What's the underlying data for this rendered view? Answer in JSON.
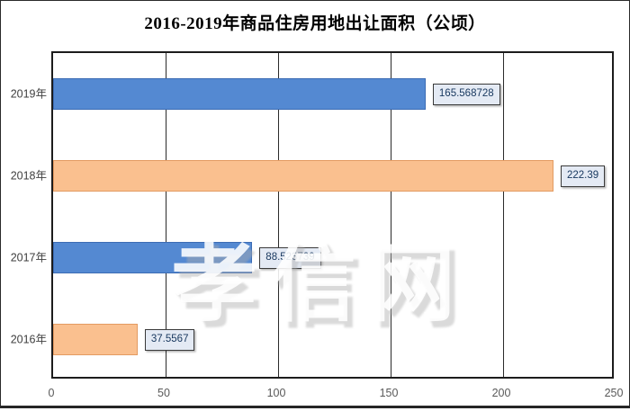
{
  "frame": {
    "background": "#ffffff",
    "border_color": "#2a2a2a",
    "bottom_rule_color": "#262626"
  },
  "chart_data": {
    "type": "bar",
    "orientation": "horizontal",
    "title": "2016-2019年商品住房用地出让面积（公顷）",
    "categories": [
      "2019年",
      "2018年",
      "2017年",
      "2016年"
    ],
    "values": [
      165.568728,
      222.39,
      88.523739,
      37.5567
    ],
    "data_labels": [
      "165.568728",
      "222.39",
      "88.523739",
      "37.5567"
    ],
    "bar_palette": [
      "blue",
      "orange",
      "blue",
      "orange"
    ],
    "series_colors": {
      "blue_fill": "#5489d2",
      "blue_border": "#3c6cb4",
      "orange_fill": "#fac08f",
      "orange_border": "#e39b62"
    },
    "x_ticks": [
      "0",
      "50",
      "100",
      "150",
      "200",
      "250"
    ],
    "xlim": [
      0,
      250
    ],
    "grid": "vertical-only",
    "gridline_color": "#2b2b2b",
    "axis_border_color": "#1c1c1c",
    "tick_label_color": "#595959",
    "category_label_color": "#3f3f3f",
    "data_label_bg": "#e4eaf4",
    "data_label_border": "#3a3a3a",
    "data_label_text_color": "#17375e",
    "legend": "none",
    "xlabel": "",
    "ylabel": ""
  },
  "watermark": {
    "text": "孝信网"
  }
}
